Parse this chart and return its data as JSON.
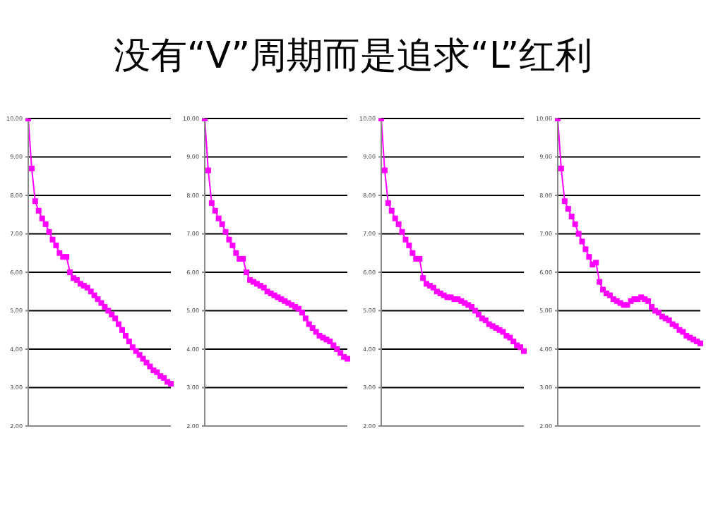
{
  "chart_data": [
    {
      "type": "line",
      "title": "没有“V”周期而是追求“L”红利",
      "categories": [
        null,
        null,
        null,
        null,
        null,
        null,
        null,
        null,
        null,
        null,
        null,
        null,
        null,
        null,
        null,
        null,
        null,
        null,
        null,
        null,
        null,
        null,
        null,
        null,
        null,
        null,
        null,
        null,
        null,
        null,
        null,
        null,
        null,
        null,
        null,
        null,
        null,
        null,
        null,
        null,
        null,
        null
      ],
      "values": [
        10,
        8.7,
        7.85,
        7.6,
        7.4,
        7.25,
        7.05,
        6.85,
        6.7,
        6.5,
        6.4,
        6.4,
        6.0,
        5.85,
        5.8,
        5.7,
        5.65,
        5.6,
        5.5,
        5.4,
        5.3,
        5.2,
        5.1,
        5.0,
        4.9,
        4.8,
        4.65,
        4.5,
        4.35,
        4.2,
        4.05,
        3.95,
        3.85,
        3.75,
        3.65,
        3.55,
        3.45,
        3.4,
        3.3,
        3.25,
        3.15,
        3.1
      ],
      "color": "#ff00ff",
      "marker": "square",
      "ylim": [
        2,
        10
      ],
      "yticks": [
        {
          "value": 2,
          "label": "2.00"
        },
        {
          "value": 3,
          "label": "3.00"
        },
        {
          "value": 4,
          "label": "4.00"
        },
        {
          "value": 5,
          "label": "5.00"
        },
        {
          "value": 6,
          "label": "6.00"
        },
        {
          "value": 7,
          "label": "7.00"
        },
        {
          "value": 8,
          "label": "8.00"
        },
        {
          "value": 9,
          "label": "9.00"
        },
        {
          "value": 10,
          "label": "10.00"
        }
      ],
      "grid": "y",
      "tick_labels": "y"
    },
    {
      "type": "line",
      "categories": [
        null,
        null,
        null,
        null,
        null,
        null,
        null,
        null,
        null,
        null,
        null,
        null,
        null,
        null,
        null,
        null,
        null,
        null,
        null,
        null,
        null,
        null,
        null,
        null,
        null,
        null,
        null,
        null,
        null,
        null,
        null,
        null,
        null,
        null,
        null,
        null,
        null,
        null,
        null,
        null,
        null,
        null
      ],
      "values": [
        10,
        8.65,
        7.8,
        7.6,
        7.4,
        7.25,
        7.05,
        6.85,
        6.7,
        6.5,
        6.35,
        6.35,
        6.0,
        5.8,
        5.75,
        5.7,
        5.65,
        5.6,
        5.5,
        5.45,
        5.4,
        5.35,
        5.3,
        5.25,
        5.2,
        5.15,
        5.1,
        5.05,
        4.95,
        4.8,
        4.65,
        4.55,
        4.45,
        4.35,
        4.3,
        4.25,
        4.2,
        4.1,
        4.0,
        3.9,
        3.8,
        3.75
      ],
      "color": "#ff00ff",
      "marker": "square",
      "ylim": [
        2,
        10
      ],
      "yticks": [
        {
          "value": 2,
          "label": "2.00"
        },
        {
          "value": 3,
          "label": "3.00"
        },
        {
          "value": 4,
          "label": "4.00"
        },
        {
          "value": 5,
          "label": "5.00"
        },
        {
          "value": 6,
          "label": "6.00"
        },
        {
          "value": 7,
          "label": "7.00"
        },
        {
          "value": 8,
          "label": "8.00"
        },
        {
          "value": 9,
          "label": "9.00"
        },
        {
          "value": 10,
          "label": "10.00"
        }
      ],
      "grid": "y",
      "tick_labels": "y"
    },
    {
      "type": "line",
      "categories": [
        null,
        null,
        null,
        null,
        null,
        null,
        null,
        null,
        null,
        null,
        null,
        null,
        null,
        null,
        null,
        null,
        null,
        null,
        null,
        null,
        null,
        null,
        null,
        null,
        null,
        null,
        null,
        null,
        null,
        null,
        null,
        null,
        null,
        null,
        null,
        null,
        null,
        null,
        null,
        null,
        null,
        null
      ],
      "values": [
        10,
        8.65,
        7.8,
        7.6,
        7.4,
        7.25,
        7.05,
        6.85,
        6.7,
        6.5,
        6.35,
        6.35,
        5.85,
        5.7,
        5.65,
        5.6,
        5.5,
        5.45,
        5.4,
        5.35,
        5.35,
        5.3,
        5.3,
        5.25,
        5.2,
        5.15,
        5.1,
        5.0,
        4.9,
        4.8,
        4.75,
        4.65,
        4.6,
        4.55,
        4.5,
        4.45,
        4.35,
        4.3,
        4.2,
        4.1,
        4.05,
        3.95
      ],
      "color": "#ff00ff",
      "marker": "square",
      "ylim": [
        2,
        10
      ],
      "yticks": [
        {
          "value": 2,
          "label": "2.00"
        },
        {
          "value": 3,
          "label": "3.00"
        },
        {
          "value": 4,
          "label": "4.00"
        },
        {
          "value": 5,
          "label": "5.00"
        },
        {
          "value": 6,
          "label": "6.00"
        },
        {
          "value": 7,
          "label": "7.00"
        },
        {
          "value": 8,
          "label": "8.00"
        },
        {
          "value": 9,
          "label": "9.00"
        },
        {
          "value": 10,
          "label": "10.00"
        }
      ],
      "grid": "y",
      "tick_labels": "y"
    },
    {
      "type": "line",
      "categories": [
        null,
        null,
        null,
        null,
        null,
        null,
        null,
        null,
        null,
        null,
        null,
        null,
        null,
        null,
        null,
        null,
        null,
        null,
        null,
        null,
        null,
        null,
        null,
        null,
        null,
        null,
        null,
        null,
        null,
        null,
        null,
        null,
        null,
        null,
        null,
        null,
        null,
        null,
        null,
        null,
        null,
        null
      ],
      "values": [
        10,
        8.7,
        7.85,
        7.65,
        7.45,
        7.25,
        7.0,
        6.8,
        6.6,
        6.4,
        6.2,
        6.25,
        5.75,
        5.55,
        5.45,
        5.4,
        5.3,
        5.25,
        5.2,
        5.15,
        5.15,
        5.25,
        5.3,
        5.3,
        5.35,
        5.3,
        5.25,
        5.1,
        5.0,
        4.95,
        4.85,
        4.8,
        4.75,
        4.65,
        4.6,
        4.5,
        4.45,
        4.35,
        4.3,
        4.25,
        4.2,
        4.15
      ],
      "color": "#ff00ff",
      "marker": "square",
      "ylim": [
        2,
        10
      ],
      "yticks": [
        {
          "value": 2,
          "label": "2.00"
        },
        {
          "value": 3,
          "label": "3.00"
        },
        {
          "value": 4,
          "label": "4.00"
        },
        {
          "value": 5,
          "label": "5.00"
        },
        {
          "value": 6,
          "label": "6.00"
        },
        {
          "value": 7,
          "label": "7.00"
        },
        {
          "value": 8,
          "label": "8.00"
        },
        {
          "value": 9,
          "label": "9.00"
        },
        {
          "value": 10,
          "label": "10.00"
        }
      ],
      "grid": "y",
      "tick_labels": "y"
    }
  ]
}
